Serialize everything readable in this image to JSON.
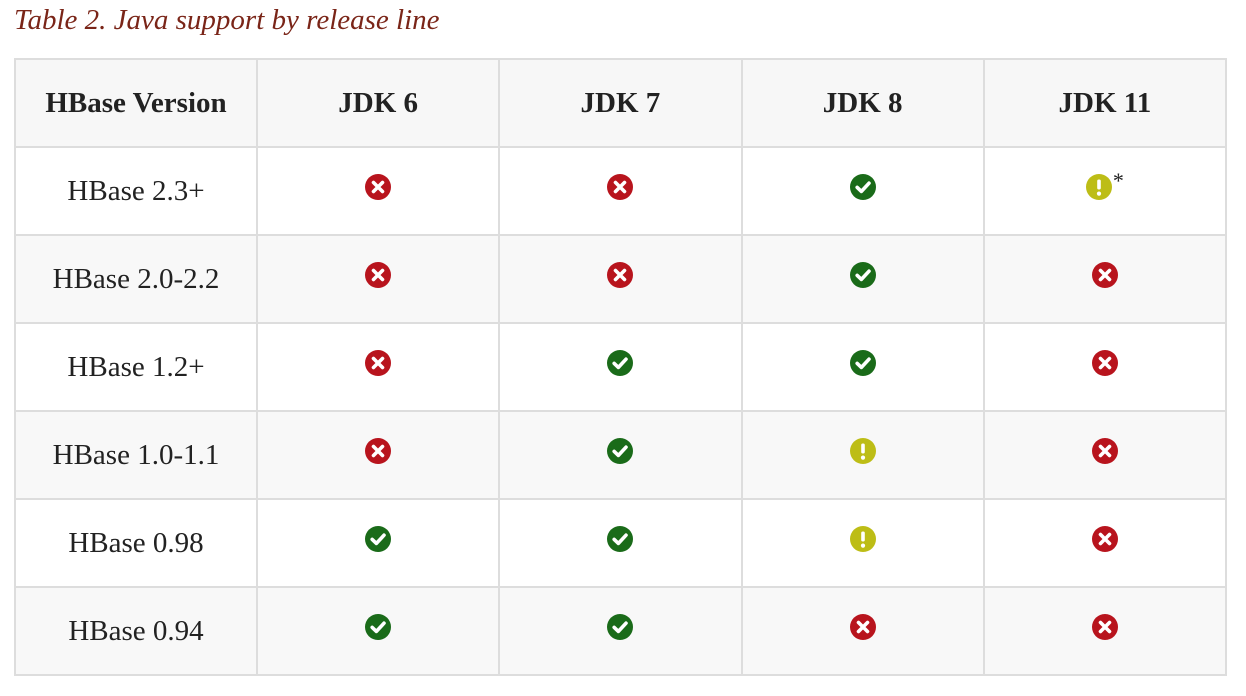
{
  "caption": "Table 2. Java support by release line",
  "colors": {
    "unsupported": "#b8141d",
    "supported": "#1a6b19",
    "warning": "#bdbd16",
    "caption": "#7a2518"
  },
  "table": {
    "headers": [
      "HBase Version",
      "JDK 6",
      "JDK 7",
      "JDK 8",
      "JDK 11"
    ],
    "rows": [
      {
        "version": "HBase 2.3+",
        "cells": [
          {
            "status": "unsupported",
            "icon": "x-circle-icon",
            "note": ""
          },
          {
            "status": "unsupported",
            "icon": "x-circle-icon",
            "note": ""
          },
          {
            "status": "supported",
            "icon": "check-circle-icon",
            "note": ""
          },
          {
            "status": "warning",
            "icon": "exclamation-circle-icon",
            "note": "*"
          }
        ]
      },
      {
        "version": "HBase 2.0-2.2",
        "cells": [
          {
            "status": "unsupported",
            "icon": "x-circle-icon",
            "note": ""
          },
          {
            "status": "unsupported",
            "icon": "x-circle-icon",
            "note": ""
          },
          {
            "status": "supported",
            "icon": "check-circle-icon",
            "note": ""
          },
          {
            "status": "unsupported",
            "icon": "x-circle-icon",
            "note": ""
          }
        ]
      },
      {
        "version": "HBase 1.2+",
        "cells": [
          {
            "status": "unsupported",
            "icon": "x-circle-icon",
            "note": ""
          },
          {
            "status": "supported",
            "icon": "check-circle-icon",
            "note": ""
          },
          {
            "status": "supported",
            "icon": "check-circle-icon",
            "note": ""
          },
          {
            "status": "unsupported",
            "icon": "x-circle-icon",
            "note": ""
          }
        ]
      },
      {
        "version": "HBase 1.0-1.1",
        "cells": [
          {
            "status": "unsupported",
            "icon": "x-circle-icon",
            "note": ""
          },
          {
            "status": "supported",
            "icon": "check-circle-icon",
            "note": ""
          },
          {
            "status": "warning",
            "icon": "exclamation-circle-icon",
            "note": ""
          },
          {
            "status": "unsupported",
            "icon": "x-circle-icon",
            "note": ""
          }
        ]
      },
      {
        "version": "HBase 0.98",
        "cells": [
          {
            "status": "supported",
            "icon": "check-circle-icon",
            "note": ""
          },
          {
            "status": "supported",
            "icon": "check-circle-icon",
            "note": ""
          },
          {
            "status": "warning",
            "icon": "exclamation-circle-icon",
            "note": ""
          },
          {
            "status": "unsupported",
            "icon": "x-circle-icon",
            "note": ""
          }
        ]
      },
      {
        "version": "HBase 0.94",
        "cells": [
          {
            "status": "supported",
            "icon": "check-circle-icon",
            "note": ""
          },
          {
            "status": "supported",
            "icon": "check-circle-icon",
            "note": ""
          },
          {
            "status": "unsupported",
            "icon": "x-circle-icon",
            "note": ""
          },
          {
            "status": "unsupported",
            "icon": "x-circle-icon",
            "note": ""
          }
        ]
      }
    ]
  }
}
